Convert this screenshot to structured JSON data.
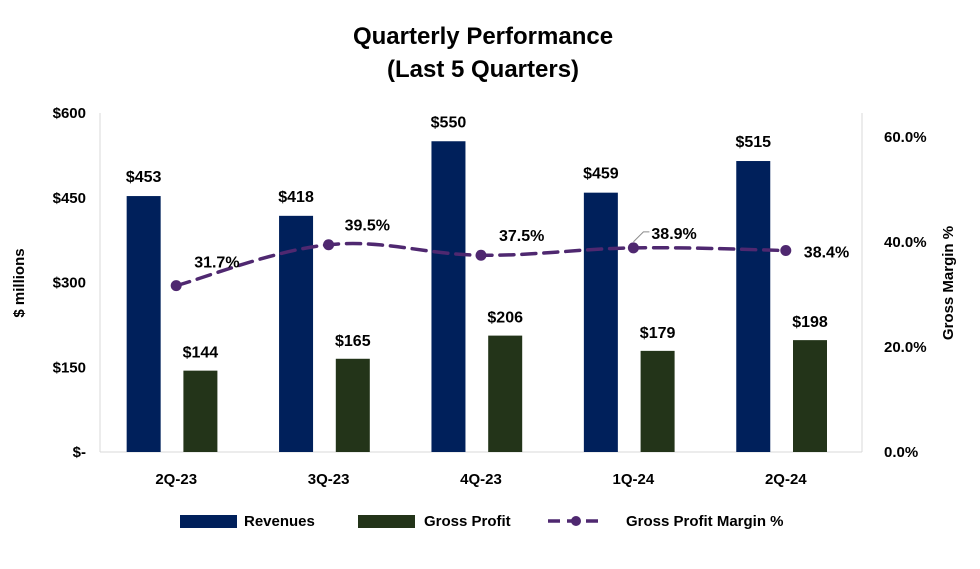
{
  "chart_data": {
    "type": "bar",
    "title": "Quarterly Performance",
    "subtitle": "(Last 5 Quarters)",
    "categories": [
      "2Q-23",
      "3Q-23",
      "4Q-23",
      "1Q-24",
      "2Q-24"
    ],
    "series": [
      {
        "name": "Revenues",
        "type": "bar",
        "axis": "left",
        "color": "#00205B",
        "values": [
          453,
          418,
          550,
          459,
          515
        ],
        "labels": [
          "$453",
          "$418",
          "$550",
          "$459",
          "$515"
        ]
      },
      {
        "name": "Gross Profit",
        "type": "bar",
        "axis": "left",
        "color": "#233419",
        "values": [
          144,
          165,
          206,
          179,
          198
        ],
        "labels": [
          "$144",
          "$165",
          "$206",
          "$179",
          "$198"
        ]
      },
      {
        "name": "Gross Profit Margin %",
        "type": "line",
        "style": "dashed",
        "axis": "right",
        "color": "#4F2870",
        "values": [
          31.7,
          39.5,
          37.5,
          38.9,
          38.4
        ],
        "labels": [
          "31.7%",
          "39.5%",
          "37.5%",
          "38.9%",
          "38.4%"
        ]
      }
    ],
    "ylabel": "$ millions",
    "y2label": "Gross Margin %",
    "ylim": [
      0,
      600
    ],
    "y2lim": [
      0,
      64.6
    ],
    "yticks": [
      0,
      150,
      300,
      450,
      600
    ],
    "ytick_labels": [
      "$-",
      "$150",
      "$300",
      "$450",
      "$600"
    ],
    "y2ticks": [
      0,
      20,
      40,
      60
    ],
    "y2tick_labels": [
      "0.0%",
      "20.0%",
      "40.0%",
      "60.0%"
    ],
    "grid": false,
    "legend_position": "bottom"
  }
}
